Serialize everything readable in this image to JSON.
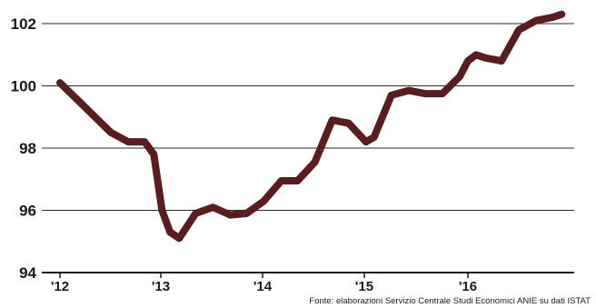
{
  "chart_data": {
    "type": "line",
    "title": "",
    "xlabel": "",
    "ylabel": "",
    "ylim": [
      94,
      102
    ],
    "yticks": [
      "94",
      "96",
      "98",
      "100",
      "102"
    ],
    "xticks": [
      "'12",
      "'13",
      "'14",
      "'15",
      "'16"
    ],
    "grid": true,
    "source": "Fonte: elaborazioni Servizio Centrale Studi Economici ANIE su dati ISTAT",
    "series": [
      {
        "name": "",
        "color": "#5a1c1c",
        "x": [
          2012.0,
          2012.25,
          2012.5,
          2012.67,
          2012.83,
          2012.92,
          2013.0,
          2013.08,
          2013.17,
          2013.33,
          2013.5,
          2013.67,
          2013.83,
          2014.0,
          2014.17,
          2014.33,
          2014.5,
          2014.67,
          2014.83,
          2015.0,
          2015.08,
          2015.25,
          2015.42,
          2015.58,
          2015.75,
          2015.92,
          2016.0,
          2016.08,
          2016.17,
          2016.33,
          2016.5,
          2016.67,
          2016.83,
          2016.92
        ],
        "values": [
          100.1,
          99.3,
          98.5,
          98.2,
          98.2,
          97.8,
          96.0,
          95.3,
          95.1,
          95.9,
          96.1,
          95.85,
          95.9,
          96.3,
          96.95,
          96.95,
          97.55,
          98.9,
          98.8,
          98.2,
          98.35,
          99.7,
          99.85,
          99.75,
          99.75,
          100.3,
          100.8,
          101.0,
          100.9,
          100.8,
          101.8,
          102.1,
          102.2,
          102.3
        ]
      }
    ]
  }
}
